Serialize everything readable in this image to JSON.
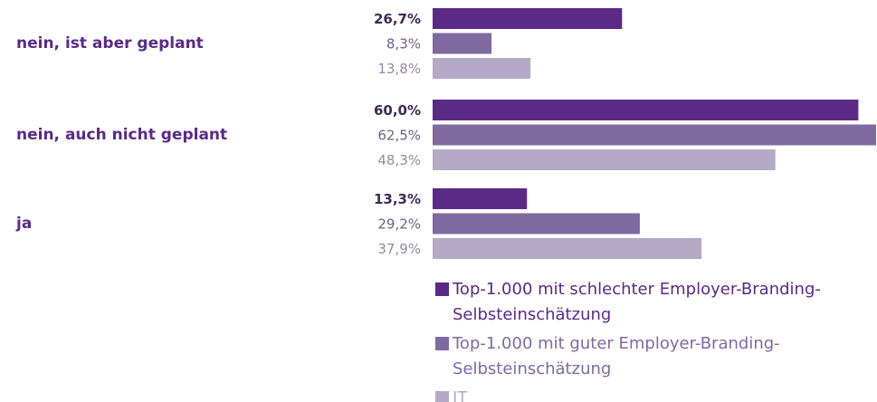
{
  "chart_data": {
    "type": "bar",
    "orientation": "horizontal",
    "categories": [
      "nein, ist aber geplant",
      "nein, auch nicht geplant",
      "ja"
    ],
    "series": [
      {
        "name": "Top-1.000 mit schlechter Employer-Branding-Selbsteinschätzung",
        "color": "#5b2a86",
        "values": [
          26.7,
          60.0,
          13.3
        ],
        "value_labels": [
          "26,7%",
          "60,0%",
          "13,3%"
        ]
      },
      {
        "name": "Top-1.000 mit guter Employer-Branding-Selbsteinschätzung",
        "color": "#7f6aa0",
        "values": [
          8.3,
          62.5,
          29.2
        ],
        "value_labels": [
          "8,3%",
          "62,5%",
          "29,2%"
        ]
      },
      {
        "name": "IT",
        "color": "#b4a9c6",
        "values": [
          13.8,
          48.3,
          37.9
        ],
        "value_labels": [
          "13,8%",
          "48,3%",
          "37,9%"
        ]
      }
    ]
  }
}
